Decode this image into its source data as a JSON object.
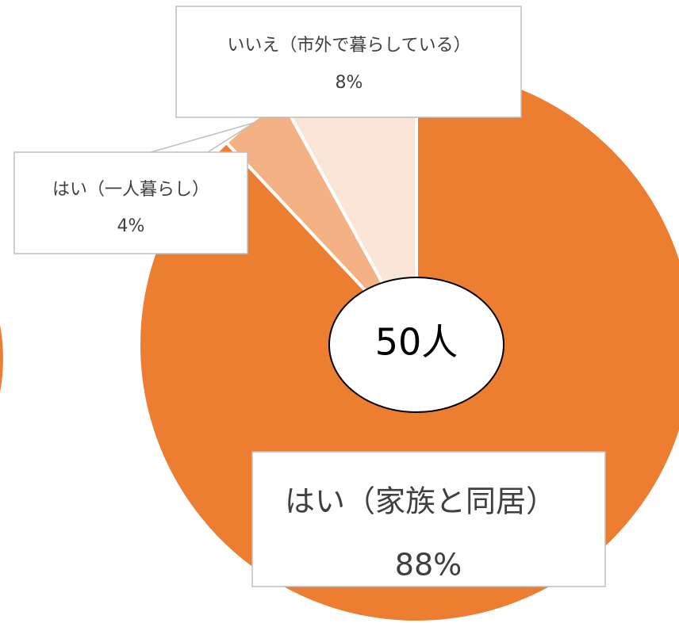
{
  "chart_data": {
    "type": "pie",
    "categories": [
      "はい（家族と同居）",
      "はい（一人暮らし）",
      "いいえ（市外で暮らしている）"
    ],
    "values": [
      88,
      4,
      8
    ],
    "value_labels": [
      "88%",
      "4%",
      "8%"
    ],
    "colors": [
      "#ed7d31",
      "#f4b183",
      "#fbe5d6"
    ],
    "center_label": "50人"
  }
}
